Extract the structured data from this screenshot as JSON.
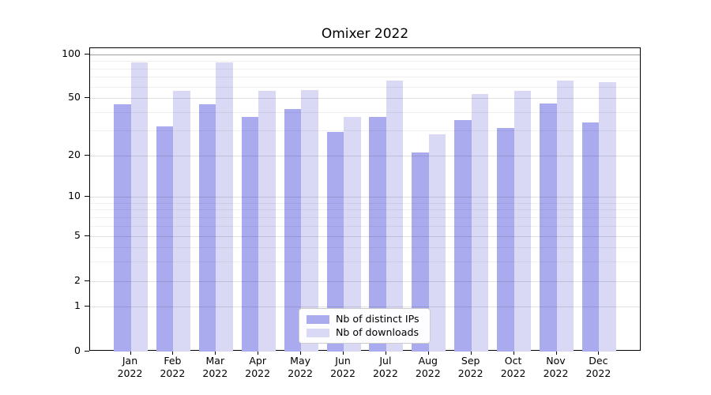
{
  "chart_data": {
    "type": "bar",
    "title": "Omixer 2022",
    "categories": [
      "Jan",
      "Feb",
      "Mar",
      "Apr",
      "May",
      "Jun",
      "Jul",
      "Aug",
      "Sep",
      "Oct",
      "Nov",
      "Dec"
    ],
    "category_year_line": "2022",
    "series": [
      {
        "name": "Nb of distinct IPs",
        "color": "#aaaaee",
        "values": [
          45,
          32,
          45,
          37,
          42,
          29,
          37,
          21,
          35,
          31,
          46,
          34
        ]
      },
      {
        "name": "Nb of downloads",
        "color": "#d9d9f6",
        "values": [
          88,
          56,
          88,
          56,
          57,
          37,
          66,
          28,
          53,
          56,
          66,
          64
        ]
      }
    ],
    "y_axis": {
      "scale": "log-like",
      "tick_values": [
        0,
        1,
        2,
        5,
        10,
        20,
        50,
        100
      ],
      "minor_gridline_values": [
        3,
        4,
        6,
        7,
        8,
        9,
        30,
        40,
        60,
        70,
        80,
        90
      ]
    },
    "legend_position": "bottom-center",
    "colors": {
      "bar_distinct_ips": "#aaaaee",
      "bar_downloads": "#d9d9f6",
      "axis": "#000000",
      "background": "#ffffff",
      "text": "#000000"
    }
  }
}
